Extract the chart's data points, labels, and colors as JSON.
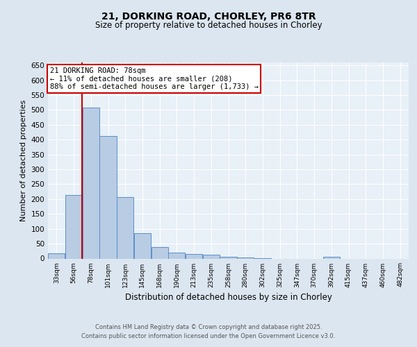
{
  "title": "21, DORKING ROAD, CHORLEY, PR6 8TR",
  "subtitle": "Size of property relative to detached houses in Chorley",
  "xlabel": "Distribution of detached houses by size in Chorley",
  "ylabel": "Number of detached properties",
  "categories": [
    "33sqm",
    "56sqm",
    "78sqm",
    "101sqm",
    "123sqm",
    "145sqm",
    "168sqm",
    "190sqm",
    "213sqm",
    "235sqm",
    "258sqm",
    "280sqm",
    "302sqm",
    "325sqm",
    "347sqm",
    "370sqm",
    "392sqm",
    "415sqm",
    "437sqm",
    "460sqm",
    "482sqm"
  ],
  "bar_heights": [
    18,
    213,
    507,
    412,
    207,
    86,
    38,
    20,
    16,
    13,
    5,
    4,
    1,
    0,
    0,
    0,
    5,
    0,
    0,
    0,
    0
  ],
  "bar_color": "#b8cce4",
  "bar_edge_color": "#5b8fc9",
  "highlight_color": "#cc0000",
  "red_line_index": 2,
  "annotation_title": "21 DORKING ROAD: 78sqm",
  "annotation_line1": "← 11% of detached houses are smaller (208)",
  "annotation_line2": "88% of semi-detached houses are larger (1,733) →",
  "annotation_box_color": "#cc0000",
  "ylim": [
    0,
    660
  ],
  "yticks": [
    0,
    50,
    100,
    150,
    200,
    250,
    300,
    350,
    400,
    450,
    500,
    550,
    600,
    650
  ],
  "footer_line1": "Contains HM Land Registry data © Crown copyright and database right 2025.",
  "footer_line2": "Contains public sector information licensed under the Open Government Licence v3.0.",
  "bg_color": "#dce6f0",
  "plot_bg_color": "#e8f0f8",
  "grid_color": "#ffffff",
  "title_fontsize": 10,
  "subtitle_fontsize": 8.5,
  "ylabel_fontsize": 8,
  "xlabel_fontsize": 8.5,
  "xtick_fontsize": 6.5,
  "ytick_fontsize": 7.5,
  "footer_fontsize": 6,
  "annotation_fontsize": 7.5
}
